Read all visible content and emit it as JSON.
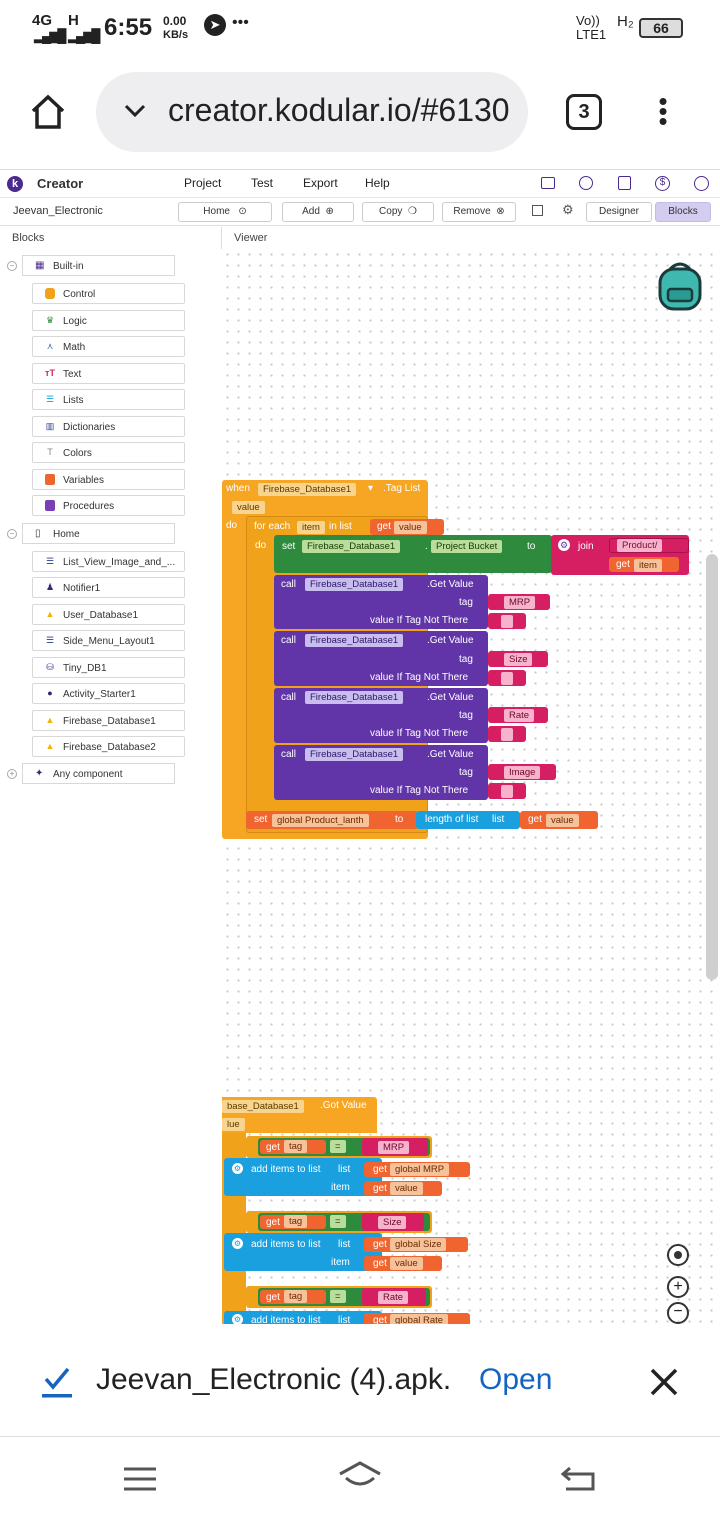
{
  "status_bar": {
    "network": "4G",
    "signal_h": "H",
    "time": "6:55",
    "speed_value": "0.00",
    "speed_unit": "KB/s",
    "more": "•••",
    "volte": "Vo)) LTE1",
    "h2": "H₂",
    "battery": "66"
  },
  "browser": {
    "url": "creator.kodular.io/#6130",
    "tab_count": "3"
  },
  "app": {
    "title": "Creator",
    "logo": "k",
    "menu": [
      "Project",
      "Test",
      "Export",
      "Help"
    ]
  },
  "toolbar": {
    "project_name": "Jeevan_Electronic",
    "home": "Home",
    "add": "Add",
    "copy": "Copy",
    "remove": "Remove",
    "designer": "Designer",
    "blocks": "Blocks"
  },
  "panels": {
    "blocks": "Blocks",
    "viewer": "Viewer"
  },
  "palette": {
    "builtin_label": "Built-in",
    "builtin": [
      "Control",
      "Logic",
      "Math",
      "Text",
      "Lists",
      "Dictionaries",
      "Colors",
      "Variables",
      "Procedures"
    ],
    "home_label": "Home",
    "components": [
      "List_View_Image_and_...",
      "Notifier1",
      "User_Database1",
      "Side_Menu_Layout1",
      "Tiny_DB1",
      "Activity_Starter1",
      "Firebase_Database1",
      "Firebase_Database2"
    ],
    "any_component": "Any component"
  },
  "blocks": {
    "when": "when",
    "event_component": "Firebase_Database1",
    "event_name": ".Tag List",
    "param_value": "value",
    "do": "do",
    "for_each": "for each",
    "item_var": "item",
    "in_list": "in list",
    "get": "get",
    "value": "value",
    "set": "set",
    "project_bucket": "Project Bucket",
    "to": "to",
    "join": "join",
    "product_str": "Product/",
    "item": "item",
    "call": "call",
    "get_value": ".Get Value",
    "tag": "tag",
    "if_not_there": "value If Tag Not There",
    "tags": [
      "MRP",
      "Size",
      "Rate",
      "Image"
    ],
    "global_product_lanth": "global Product_lanth",
    "length_of_list": "length of list",
    "list": "list",
    "event2_component": "base_Database1",
    "event2_name": ".Got Value",
    "event2_param": "lue",
    "eq": "=",
    "add_items": "add items to list",
    "lists": [
      "global MRP",
      "global Size",
      "global Rate"
    ]
  },
  "download": {
    "filename": "Jeevan_Electronic (4).apk.",
    "action": "Open"
  },
  "colors": {
    "event": "#f6a623",
    "control": "#f0a21a",
    "setter": "#2e8b3d",
    "method": "#6135a8",
    "text": "#d61f62",
    "get": "#f0652f",
    "lists": "#1aa0df",
    "accent": "#1565c0"
  }
}
